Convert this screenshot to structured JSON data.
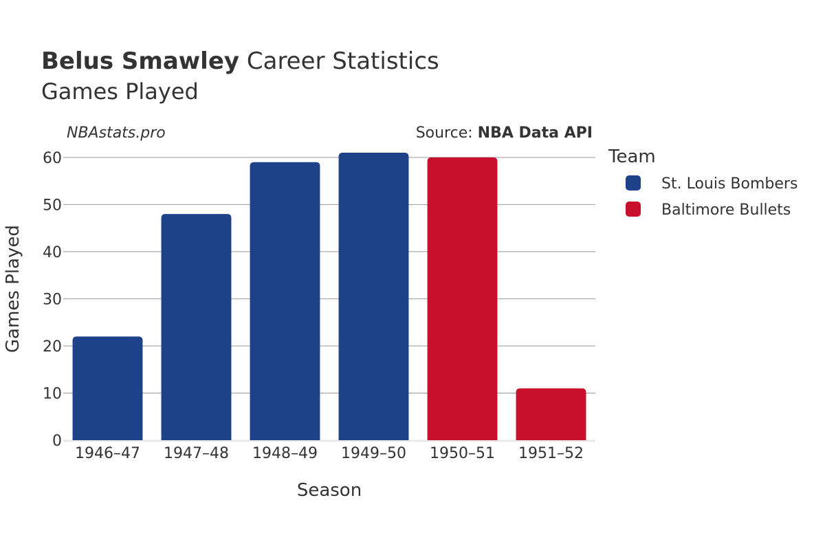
{
  "header": {
    "title_bold": "Belus Smawley",
    "title_rest": " Career Statistics",
    "subtitle": "Games Played",
    "watermark": "NBAstats.pro",
    "source_prefix": "Source: ",
    "source_name": "NBA Data API"
  },
  "legend": {
    "title": "Team"
  },
  "chart_data": {
    "type": "bar",
    "title": "Belus Smawley Career Statistics",
    "subtitle": "Games Played",
    "xlabel": "Season",
    "ylabel": "Games Played",
    "categories": [
      "1946–47",
      "1947–48",
      "1948–49",
      "1949–50",
      "1950–51",
      "1951–52"
    ],
    "values": [
      22,
      48,
      59,
      61,
      60,
      11
    ],
    "bar_team": [
      "St. Louis Bombers",
      "St. Louis Bombers",
      "St. Louis Bombers",
      "St. Louis Bombers",
      "Baltimore Bullets",
      "Baltimore Bullets"
    ],
    "series": [
      {
        "name": "St. Louis Bombers",
        "color": "#1d4289"
      },
      {
        "name": "Baltimore Bullets",
        "color": "#c8102e"
      }
    ],
    "ylim": [
      0,
      61
    ],
    "yticks": [
      0,
      10,
      20,
      30,
      40,
      50,
      60
    ],
    "grid": true,
    "legend_position": "right"
  }
}
